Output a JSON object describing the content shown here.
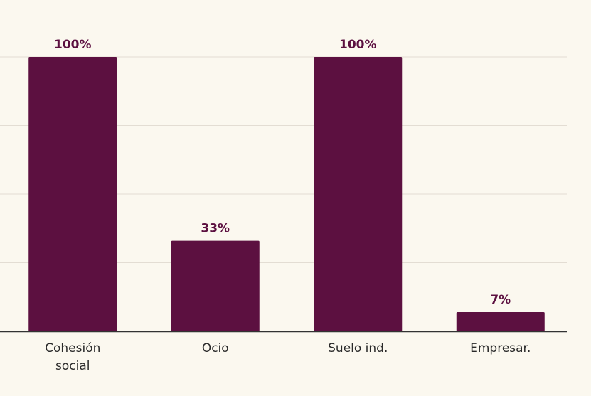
{
  "chart_data": {
    "type": "bar",
    "categories": [
      [
        "Cohesión",
        "social"
      ],
      [
        "Ocio"
      ],
      [
        "Suelo ind."
      ],
      [
        "Empresar."
      ]
    ],
    "values": [
      100,
      33,
      100,
      7
    ],
    "value_labels": [
      "100%",
      "33%",
      "100%",
      "7%"
    ],
    "title": "",
    "xlabel": "",
    "ylabel": "",
    "ylim": [
      0,
      100
    ],
    "grid": true,
    "bar_color": "#5c1040",
    "label_color": "#5c1040",
    "gridline_color": "#e3ddd3",
    "axis_color": "#333333",
    "category_label_color": "#2a2a2a"
  }
}
